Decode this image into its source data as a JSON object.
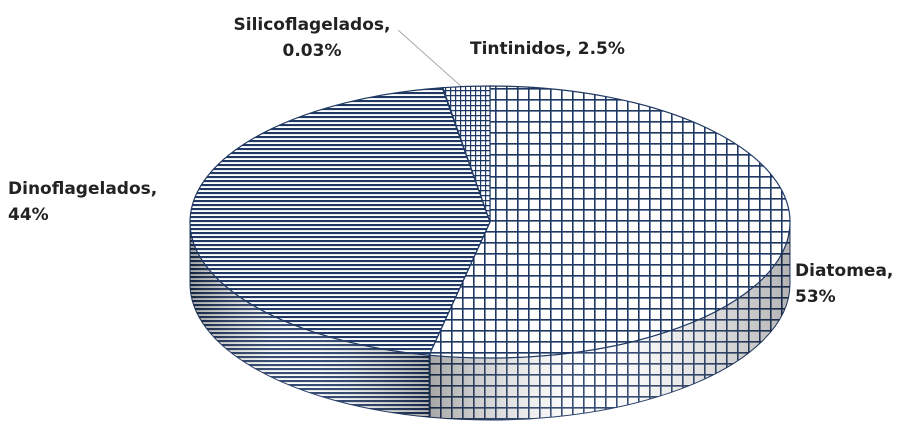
{
  "chart_data": {
    "type": "pie",
    "values": [
      53,
      44,
      0.03,
      2.5
    ],
    "value_labels": [
      "Diatomea, 53%",
      "Dinoflagelados, 44%",
      "Silicoflagelados, 0.03%",
      "Tintinidos, 2.5%"
    ],
    "color": "#1f3864"
  }
}
